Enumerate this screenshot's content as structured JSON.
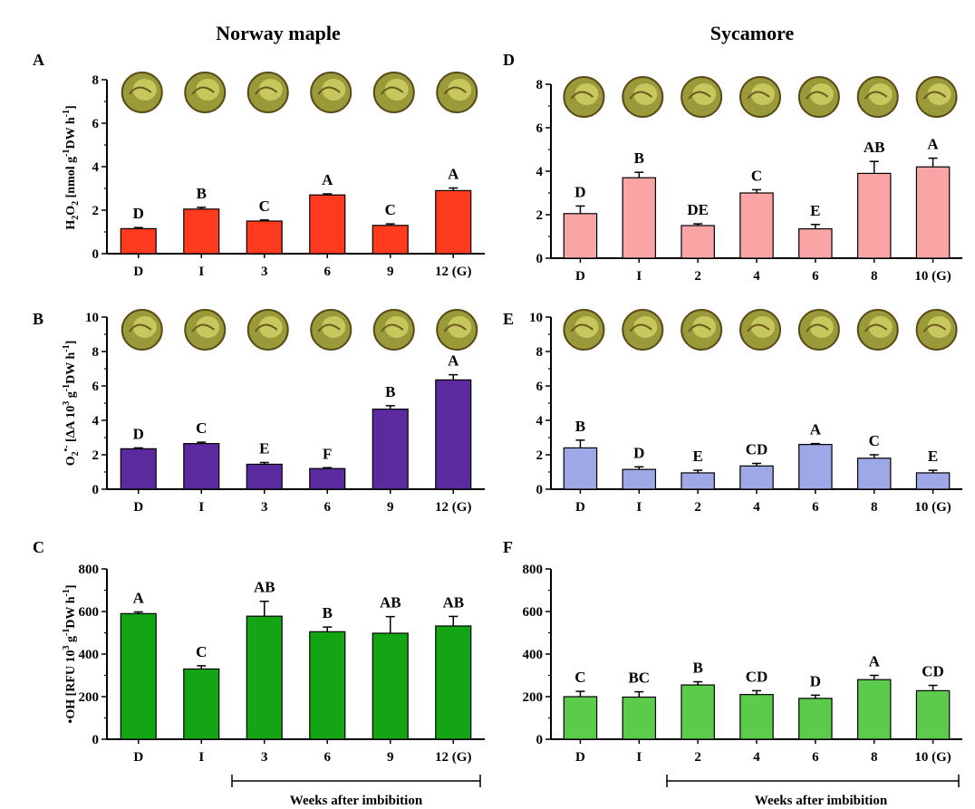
{
  "titles": {
    "left": "Norway maple",
    "right": "Sycamore"
  },
  "week_label": "Weeks after imbibition",
  "ylabels": {
    "h2o2": "H2O2 [nmol g-1 DW h-1]",
    "o2": "O2•- [ΔA 103 g-1 DW h-1]",
    "oh": "•OH [RFU 103 g-1 DW h-1]"
  },
  "colors": {
    "h2o2_maple": "#ff3b1f",
    "h2o2_sycamore": "#f9a5a5",
    "o2_maple": "#5b2a9e",
    "o2_sycamore": "#9ea8e6",
    "oh_maple": "#14a514",
    "oh_sycamore": "#5ccb4c",
    "axis": "#000000"
  },
  "chart_data": [
    {
      "panel": "A",
      "type": "bar",
      "species": "Norway maple",
      "categories": [
        "D",
        "I",
        "3",
        "6",
        "9",
        "12 (G)"
      ],
      "values": [
        1.15,
        2.05,
        1.5,
        2.7,
        1.3,
        2.9
      ],
      "errors": [
        0.05,
        0.08,
        0.05,
        0.05,
        0.07,
        0.12
      ],
      "letters": [
        "D",
        "B",
        "C",
        "A",
        "C",
        "A"
      ],
      "ylim": [
        0,
        8
      ],
      "yticks": [
        0,
        2,
        4,
        6,
        8
      ],
      "seed_images": 6
    },
    {
      "panel": "D",
      "type": "bar",
      "species": "Sycamore",
      "categories": [
        "D",
        "I",
        "2",
        "4",
        "6",
        "8",
        "10 (G)"
      ],
      "values": [
        2.05,
        3.7,
        1.5,
        3.0,
        1.35,
        3.9,
        4.2
      ],
      "errors": [
        0.35,
        0.25,
        0.08,
        0.15,
        0.2,
        0.55,
        0.4
      ],
      "letters": [
        "D",
        "B",
        "DE",
        "C",
        "E",
        "AB",
        "A"
      ],
      "ylim": [
        0,
        8
      ],
      "yticks": [
        0,
        2,
        4,
        6,
        8
      ],
      "seed_images": 7
    },
    {
      "panel": "B",
      "type": "bar",
      "species": "Norway maple",
      "categories": [
        "D",
        "I",
        "3",
        "6",
        "9",
        "12 (G)"
      ],
      "values": [
        2.35,
        2.65,
        1.45,
        1.2,
        4.65,
        6.35
      ],
      "errors": [
        0.05,
        0.08,
        0.1,
        0.05,
        0.2,
        0.3
      ],
      "letters": [
        "D",
        "C",
        "E",
        "F",
        "B",
        "A"
      ],
      "ylim": [
        0,
        10
      ],
      "yticks": [
        0,
        2,
        4,
        6,
        8,
        10
      ],
      "seed_images": 6
    },
    {
      "panel": "E",
      "type": "bar",
      "species": "Sycamore",
      "categories": [
        "D",
        "I",
        "2",
        "4",
        "6",
        "8",
        "10 (G)"
      ],
      "values": [
        2.4,
        1.15,
        0.95,
        1.35,
        2.6,
        1.8,
        0.95
      ],
      "errors": [
        0.45,
        0.15,
        0.15,
        0.15,
        0.05,
        0.2,
        0.15
      ],
      "letters": [
        "B",
        "D",
        "E",
        "CD",
        "A",
        "C",
        "E"
      ],
      "ylim": [
        0,
        10
      ],
      "yticks": [
        0,
        2,
        4,
        6,
        8,
        10
      ],
      "seed_images": 7
    },
    {
      "panel": "C",
      "type": "bar",
      "species": "Norway maple",
      "categories": [
        "D",
        "I",
        "3",
        "6",
        "9",
        "12 (G)"
      ],
      "values": [
        590,
        330,
        578,
        505,
        498,
        532
      ],
      "errors": [
        8,
        15,
        70,
        22,
        78,
        45
      ],
      "letters": [
        "A",
        "C",
        "AB",
        "B",
        "AB",
        "AB"
      ],
      "ylim": [
        0,
        800
      ],
      "yticks": [
        0,
        200,
        400,
        600,
        800
      ],
      "seed_images": 0
    },
    {
      "panel": "F",
      "type": "bar",
      "species": "Sycamore",
      "categories": [
        "D",
        "I",
        "2",
        "4",
        "6",
        "8",
        "10 (G)"
      ],
      "values": [
        200,
        198,
        255,
        210,
        192,
        280,
        228
      ],
      "errors": [
        25,
        25,
        15,
        18,
        15,
        20,
        25
      ],
      "letters": [
        "C",
        "BC",
        "B",
        "CD",
        "D",
        "A",
        "CD"
      ],
      "ylim": [
        0,
        800
      ],
      "yticks": [
        0,
        200,
        400,
        600,
        800
      ],
      "seed_images": 0
    }
  ]
}
